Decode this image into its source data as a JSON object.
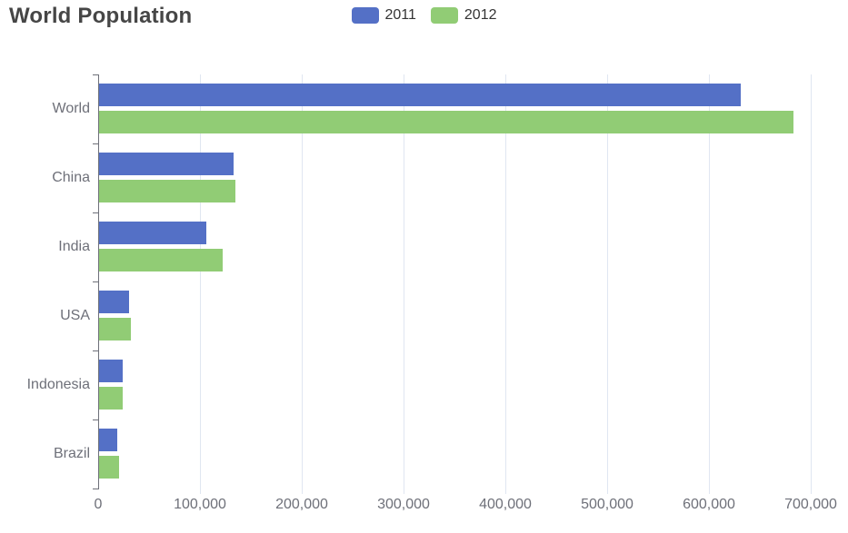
{
  "title": "World Population",
  "legend": {
    "position": "top-center",
    "items": [
      {
        "label": "2011",
        "color": "#5470C6"
      },
      {
        "label": "2012",
        "color": "#91CC75"
      }
    ]
  },
  "chart_data": {
    "type": "bar",
    "orientation": "horizontal",
    "title": "World Population",
    "categories": [
      "World",
      "China",
      "India",
      "USA",
      "Indonesia",
      "Brazil"
    ],
    "series": [
      {
        "name": "2011",
        "color": "#5470C6",
        "values": [
          630230,
          131744,
          104970,
          29034,
          23489,
          18203
        ]
      },
      {
        "name": "2012",
        "color": "#91CC75",
        "values": [
          681807,
          134141,
          121594,
          31000,
          23438,
          19325
        ]
      }
    ],
    "xlabel": "",
    "ylabel": "",
    "xlim": [
      0,
      700000
    ],
    "x_ticks": [
      0,
      100000,
      200000,
      300000,
      400000,
      500000,
      600000,
      700000
    ],
    "x_tick_labels": [
      "0",
      "100,000",
      "200,000",
      "300,000",
      "400,000",
      "500,000",
      "600,000",
      "700,000"
    ],
    "grid": true,
    "gridline_color": "#E0E6F1",
    "axis_color": "#6E7079",
    "legend_position": "top-center"
  }
}
